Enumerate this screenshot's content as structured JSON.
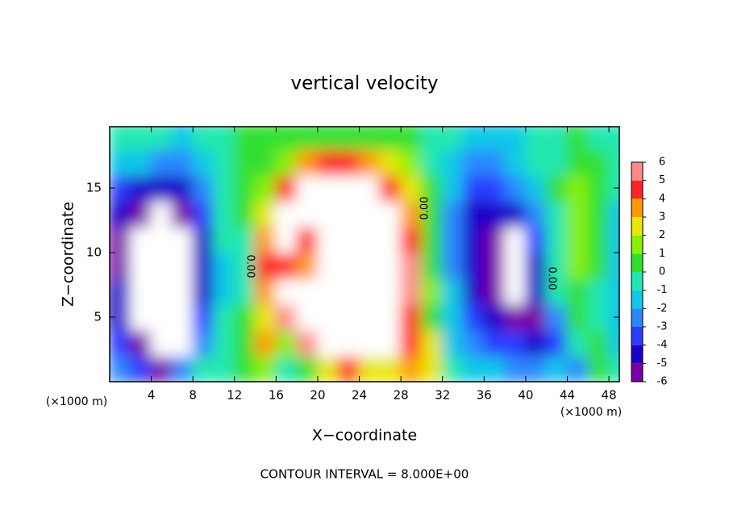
{
  "chart_data": {
    "type": "contour",
    "title": "vertical velocity",
    "x_label": "X−coordinate",
    "y_label": "Z−coordinate",
    "x_unit_label": "(×1000 m)",
    "y_unit_label": "(×1000 m)",
    "note": "CONTOUR INTERVAL = 8.000E+00",
    "contour_labels": [
      "0.00",
      "0.00",
      "0.00"
    ],
    "xlim": [
      0,
      49
    ],
    "ylim": [
      0,
      19.75
    ],
    "xticks": [
      4,
      8,
      12,
      16,
      20,
      24,
      28,
      32,
      36,
      40,
      44,
      48
    ],
    "yticks": [
      5,
      10,
      15
    ],
    "x": [
      1,
      3,
      5,
      7,
      9,
      11,
      13,
      15,
      17,
      19,
      21,
      23,
      25,
      27,
      29,
      31,
      33,
      35,
      37,
      39,
      41,
      43,
      45,
      47,
      49
    ],
    "y": [
      1,
      3,
      5,
      7,
      9,
      11,
      13,
      15,
      17,
      19
    ],
    "z": [
      [
        -2,
        -3,
        -5,
        -2,
        0,
        -0.5,
        0.5,
        2,
        0,
        1,
        3,
        5,
        3,
        3,
        4,
        3,
        0,
        -1,
        -1.5,
        -2,
        -2,
        -1,
        -2,
        0.5,
        -0.5
      ],
      [
        -3,
        -5,
        -8,
        -7,
        -2,
        0,
        0.5,
        4,
        2,
        6,
        7,
        7,
        8,
        7,
        5,
        3,
        -1,
        -2,
        -3,
        -3,
        -4,
        -3,
        0,
        0.5,
        -1
      ],
      [
        -4,
        -7,
        -8,
        -8,
        -3.5,
        -0.5,
        0.5,
        3,
        6,
        8,
        8,
        8,
        8,
        8,
        5,
        1,
        -1.5,
        -3,
        -4,
        -5,
        -5,
        -2,
        0.5,
        0,
        -1.5
      ],
      [
        -4,
        -8,
        -8,
        -8,
        -4,
        -1,
        0,
        4,
        8,
        8,
        8,
        8,
        8,
        8,
        6,
        1.5,
        -1.5,
        -4,
        -5,
        -7,
        -4.5,
        -0.5,
        1,
        0,
        -1
      ],
      [
        -5,
        -8,
        -8,
        -8,
        -4.5,
        -1,
        0,
        5,
        5,
        4,
        8,
        8,
        8,
        8,
        6,
        1,
        -2,
        -4.5,
        -6,
        -8,
        -4,
        -0.5,
        1.5,
        0.5,
        -1
      ],
      [
        -5,
        -8,
        -8,
        -8,
        -4,
        -0.5,
        0,
        4,
        8,
        5,
        8,
        8,
        8,
        8,
        5,
        1,
        -2,
        -4.5,
        -6,
        -8,
        -3,
        0,
        2,
        1,
        -1
      ],
      [
        -4.5,
        -6,
        -7,
        -6,
        -3.5,
        -0.5,
        0.5,
        3,
        8,
        8,
        8,
        8,
        8,
        7,
        4,
        0.5,
        -2,
        -4,
        -4,
        -4,
        -2,
        0,
        2,
        1,
        -1
      ],
      [
        -3,
        -4,
        -4,
        -4.5,
        -2.5,
        -0.5,
        0.5,
        2,
        5,
        8,
        8,
        8,
        7,
        5,
        2.5,
        0.5,
        -1.5,
        -3,
        -3,
        -2.5,
        -1,
        0.5,
        1.5,
        1,
        -0.5
      ],
      [
        -1,
        -1.5,
        -2,
        -2.5,
        -1.5,
        0,
        0.5,
        1,
        2,
        4,
        4.5,
        4.5,
        4,
        3,
        1.5,
        0,
        -1,
        -2,
        -2,
        -1.5,
        -0.5,
        0,
        1,
        0.5,
        -0.5
      ],
      [
        -0.5,
        -0.5,
        -0.5,
        -1,
        -0.5,
        0,
        0.5,
        0.5,
        0.5,
        1,
        1,
        1,
        1,
        0.5,
        0.5,
        0,
        -0.5,
        -1,
        -1,
        -1,
        -0.5,
        0,
        0.5,
        0,
        -0.5
      ]
    ],
    "colorbar": {
      "levels": [
        -6,
        -5,
        -4,
        -3,
        -2,
        -1,
        0,
        1,
        2,
        3,
        4,
        5,
        6
      ],
      "colors": [
        "#7a00a8",
        "#1c00c8",
        "#2a3cff",
        "#2a88ff",
        "#10c8e8",
        "#20e8b0",
        "#30e030",
        "#88f000",
        "#e8e800",
        "#ff9a00",
        "#ff2424",
        "#ff8a8a"
      ],
      "out_of_range_color": "#ffffff"
    }
  }
}
